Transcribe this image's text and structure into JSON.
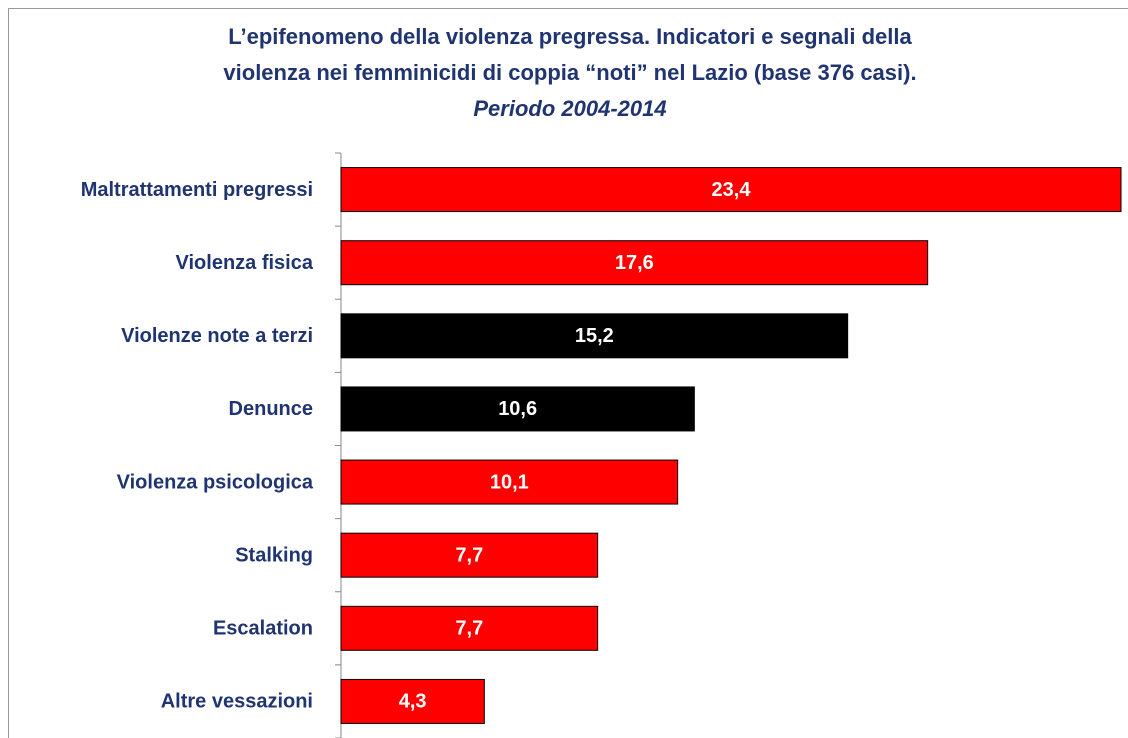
{
  "chart_data": {
    "type": "bar",
    "orientation": "horizontal",
    "title": [
      "L’epifenomeno della violenza pregressa. Indicatori e segnali della",
      "violenza nei femminicidi di coppia “noti” nel Lazio (base 376 casi)."
    ],
    "subtitle": "Periodo 2004-2014",
    "categories": [
      "Maltrattamenti pregressi",
      "Violenza fisica",
      "Violenze note a terzi",
      "Denunce",
      "Violenza psicologica",
      "Stalking",
      "Escalation",
      "Altre vessazioni"
    ],
    "values": [
      23.4,
      17.6,
      15.2,
      10.6,
      10.1,
      7.7,
      7.7,
      4.3
    ],
    "value_labels": [
      "23,4",
      "17,6",
      "15,2",
      "10,6",
      "10,1",
      "7,7",
      "7,7",
      "4,3"
    ],
    "colors": [
      "#ff0000",
      "#ff0000",
      "#000000",
      "#000000",
      "#ff0000",
      "#ff0000",
      "#ff0000",
      "#ff0000"
    ]
  }
}
